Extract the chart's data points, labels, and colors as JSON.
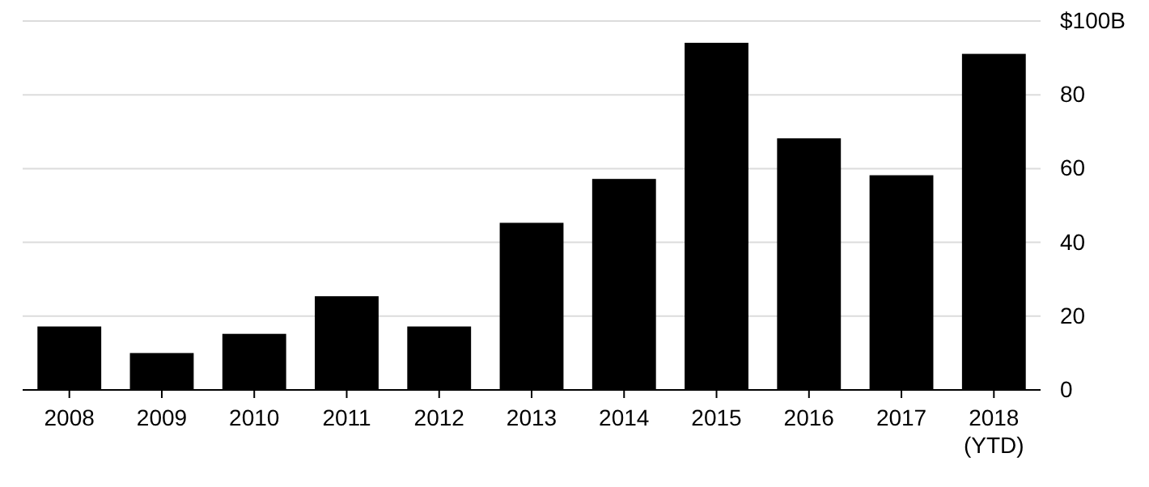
{
  "chart_data": {
    "type": "bar",
    "categories": [
      "2008",
      "2009",
      "2010",
      "2011",
      "2012",
      "2013",
      "2014",
      "2015",
      "2016",
      "2017",
      "2018\n(YTD)"
    ],
    "values": [
      17.2,
      10,
      15.2,
      25.4,
      17.2,
      45.3,
      57.2,
      94.1,
      68.2,
      58.2,
      91.1
    ],
    "color": "#000000",
    "ylim": [
      0,
      100
    ],
    "yticks": [
      0,
      20,
      40,
      60,
      80,
      {
        "value": 100,
        "label": "$100B"
      }
    ],
    "grid": "y"
  }
}
